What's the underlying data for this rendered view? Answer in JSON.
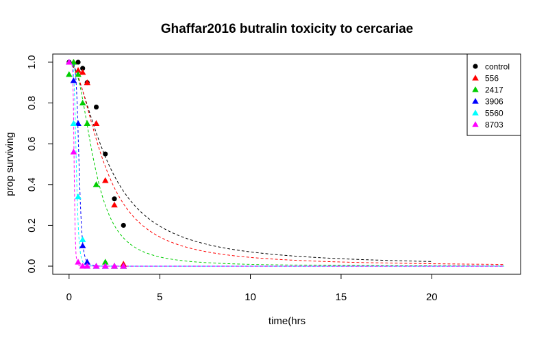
{
  "chart_data": {
    "type": "scatter",
    "title": "Ghaffar2016 butralin toxicity to cercariae",
    "xlabel": "time(hrs",
    "ylabel": "prop surviving",
    "xlim": [
      -0.9,
      24.9
    ],
    "ylim": [
      -0.04,
      1.04
    ],
    "x_ticks": [
      0,
      5,
      10,
      15,
      20
    ],
    "y_ticks": [
      0.0,
      0.2,
      0.4,
      0.6,
      0.8,
      1.0
    ],
    "x_tick_labels": [
      "0",
      "5",
      "10",
      "15",
      "20"
    ],
    "y_tick_labels": [
      "0.0",
      "0.2",
      "0.4",
      "0.6",
      "0.8",
      "1.0"
    ],
    "grid": false,
    "legend_position": "top-right",
    "series": [
      {
        "name": "control",
        "color": "#000000",
        "marker": "circle",
        "points": [
          [
            0,
            1.0
          ],
          [
            0.5,
            1.0
          ],
          [
            0.75,
            0.97
          ],
          [
            1.0,
            0.9
          ],
          [
            1.5,
            0.78
          ],
          [
            2.0,
            0.55
          ],
          [
            2.5,
            0.33
          ],
          [
            3.0,
            0.2
          ]
        ],
        "fit": {
          "t50": 2.18,
          "k": 1.7,
          "x_end": 20
        }
      },
      {
        "name": "556",
        "color": "#ff0000",
        "marker": "triangle",
        "points": [
          [
            0,
            1.0
          ],
          [
            0.25,
            1.0
          ],
          [
            0.5,
            0.96
          ],
          [
            0.75,
            0.95
          ],
          [
            1.0,
            0.9
          ],
          [
            1.5,
            0.7
          ],
          [
            2.0,
            0.42
          ],
          [
            2.5,
            0.3
          ],
          [
            3.0,
            0.01
          ]
        ],
        "fit": {
          "t50": 1.95,
          "k": 1.9,
          "x_end": 24
        }
      },
      {
        "name": "2417",
        "color": "#00cd00",
        "marker": "triangle",
        "points": [
          [
            0,
            0.94
          ],
          [
            0.25,
            1.0
          ],
          [
            0.5,
            0.94
          ],
          [
            0.75,
            0.8
          ],
          [
            1.0,
            0.7
          ],
          [
            1.5,
            0.4
          ],
          [
            2.0,
            0.02
          ],
          [
            2.5,
            0.0
          ],
          [
            3.0,
            0.0
          ]
        ],
        "fit": {
          "t50": 1.4,
          "k": 2.4,
          "x_end": 24
        }
      },
      {
        "name": "3906",
        "color": "#0000ff",
        "marker": "triangle",
        "points": [
          [
            0,
            1.0
          ],
          [
            0.25,
            0.91
          ],
          [
            0.5,
            0.7
          ],
          [
            0.75,
            0.1
          ],
          [
            1.0,
            0.02
          ],
          [
            1.5,
            0.0
          ],
          [
            2.0,
            0.0
          ],
          [
            2.5,
            0.0
          ],
          [
            3.0,
            0.0
          ]
        ],
        "fit": {
          "t50": 0.55,
          "k": 6.5,
          "x_end": 24
        }
      },
      {
        "name": "5560",
        "color": "#00ffff",
        "marker": "triangle",
        "points": [
          [
            0,
            1.0
          ],
          [
            0.25,
            0.7
          ],
          [
            0.5,
            0.34
          ],
          [
            0.75,
            0.13
          ],
          [
            1.0,
            0.0
          ],
          [
            1.5,
            0.0
          ],
          [
            2.0,
            0.0
          ]
        ],
        "fit": {
          "t50": 0.4,
          "k": 6.0,
          "x_end": 24
        }
      },
      {
        "name": "8703",
        "color": "#ff00ff",
        "marker": "triangle",
        "points": [
          [
            0,
            1.0
          ],
          [
            0.25,
            0.56
          ],
          [
            0.5,
            0.02
          ],
          [
            0.75,
            0.0
          ],
          [
            1.0,
            0.0
          ],
          [
            1.5,
            0.0
          ],
          [
            2.0,
            0.0
          ],
          [
            2.5,
            0.0
          ],
          [
            3.0,
            0.0
          ]
        ],
        "fit": {
          "t50": 0.28,
          "k": 9.0,
          "x_end": 24
        }
      }
    ]
  }
}
